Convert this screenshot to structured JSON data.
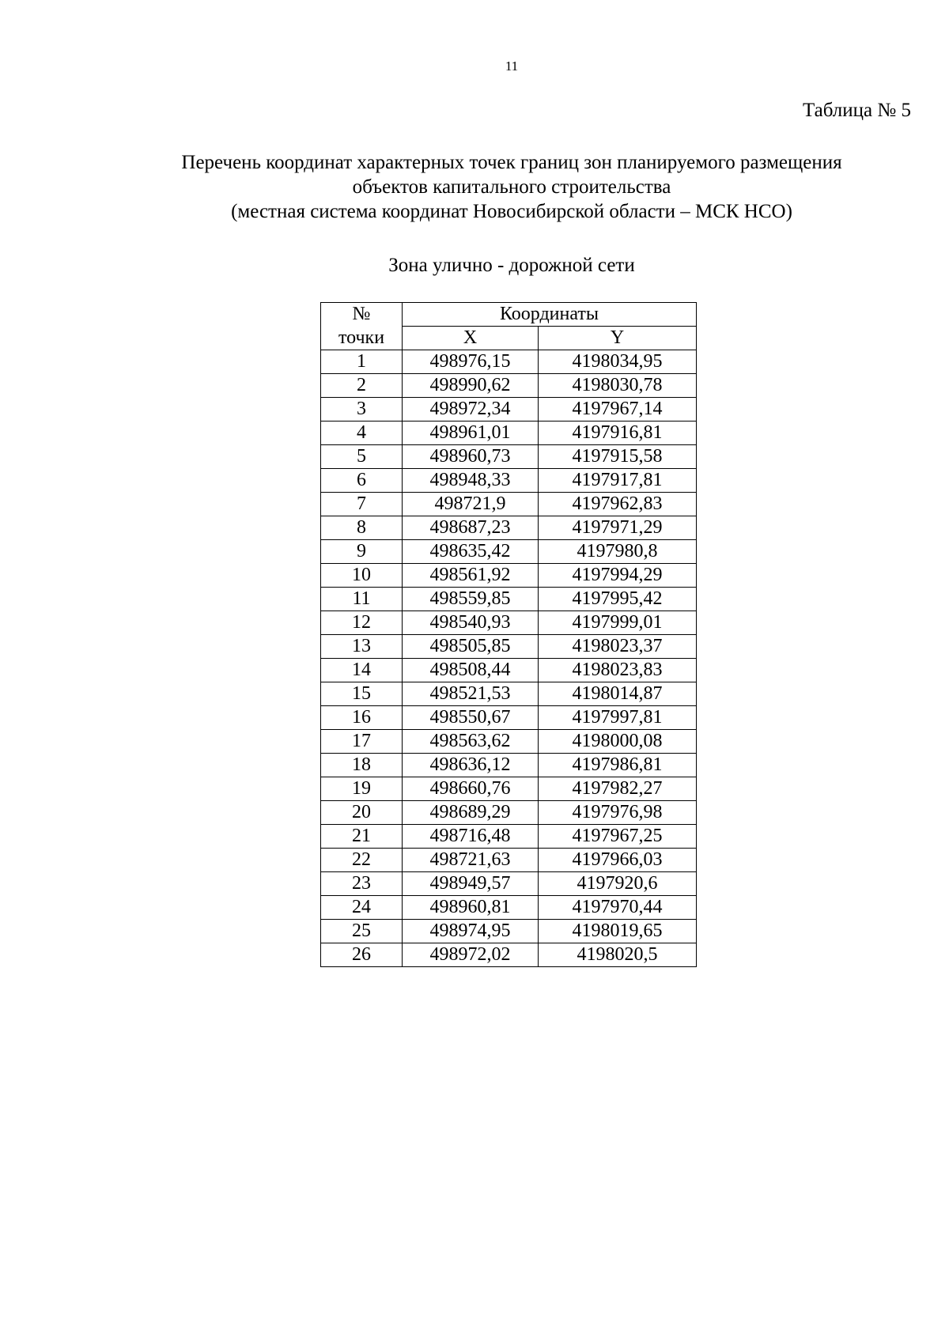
{
  "page_number": "11",
  "table_label": "Таблица № 5",
  "heading_lines": [
    "Перечень координат характерных точек границ зон планируемого размещения",
    "объектов капитального строительства",
    "(местная система координат Новосибирской области – МСК НСО)"
  ],
  "zone_title": "Зона улично - дорожной сети",
  "table": {
    "header_no_line1": "№",
    "header_no_line2": "точки",
    "header_coords": "Координаты",
    "header_x": "X",
    "header_y": "Y",
    "rows": [
      [
        "1",
        "498976,15",
        "4198034,95"
      ],
      [
        "2",
        "498990,62",
        "4198030,78"
      ],
      [
        "3",
        "498972,34",
        "4197967,14"
      ],
      [
        "4",
        "498961,01",
        "4197916,81"
      ],
      [
        "5",
        "498960,73",
        "4197915,58"
      ],
      [
        "6",
        "498948,33",
        "4197917,81"
      ],
      [
        "7",
        "498721,9",
        "4197962,83"
      ],
      [
        "8",
        "498687,23",
        "4197971,29"
      ],
      [
        "9",
        "498635,42",
        "4197980,8"
      ],
      [
        "10",
        "498561,92",
        "4197994,29"
      ],
      [
        "11",
        "498559,85",
        "4197995,42"
      ],
      [
        "12",
        "498540,93",
        "4197999,01"
      ],
      [
        "13",
        "498505,85",
        "4198023,37"
      ],
      [
        "14",
        "498508,44",
        "4198023,83"
      ],
      [
        "15",
        "498521,53",
        "4198014,87"
      ],
      [
        "16",
        "498550,67",
        "4197997,81"
      ],
      [
        "17",
        "498563,62",
        "4198000,08"
      ],
      [
        "18",
        "498636,12",
        "4197986,81"
      ],
      [
        "19",
        "498660,76",
        "4197982,27"
      ],
      [
        "20",
        "498689,29",
        "4197976,98"
      ],
      [
        "21",
        "498716,48",
        "4197967,25"
      ],
      [
        "22",
        "498721,63",
        "4197966,03"
      ],
      [
        "23",
        "498949,57",
        "4197920,6"
      ],
      [
        "24",
        "498960,81",
        "4197970,44"
      ],
      [
        "25",
        "498974,95",
        "4198019,65"
      ],
      [
        "26",
        "498972,02",
        "4198020,5"
      ]
    ]
  }
}
